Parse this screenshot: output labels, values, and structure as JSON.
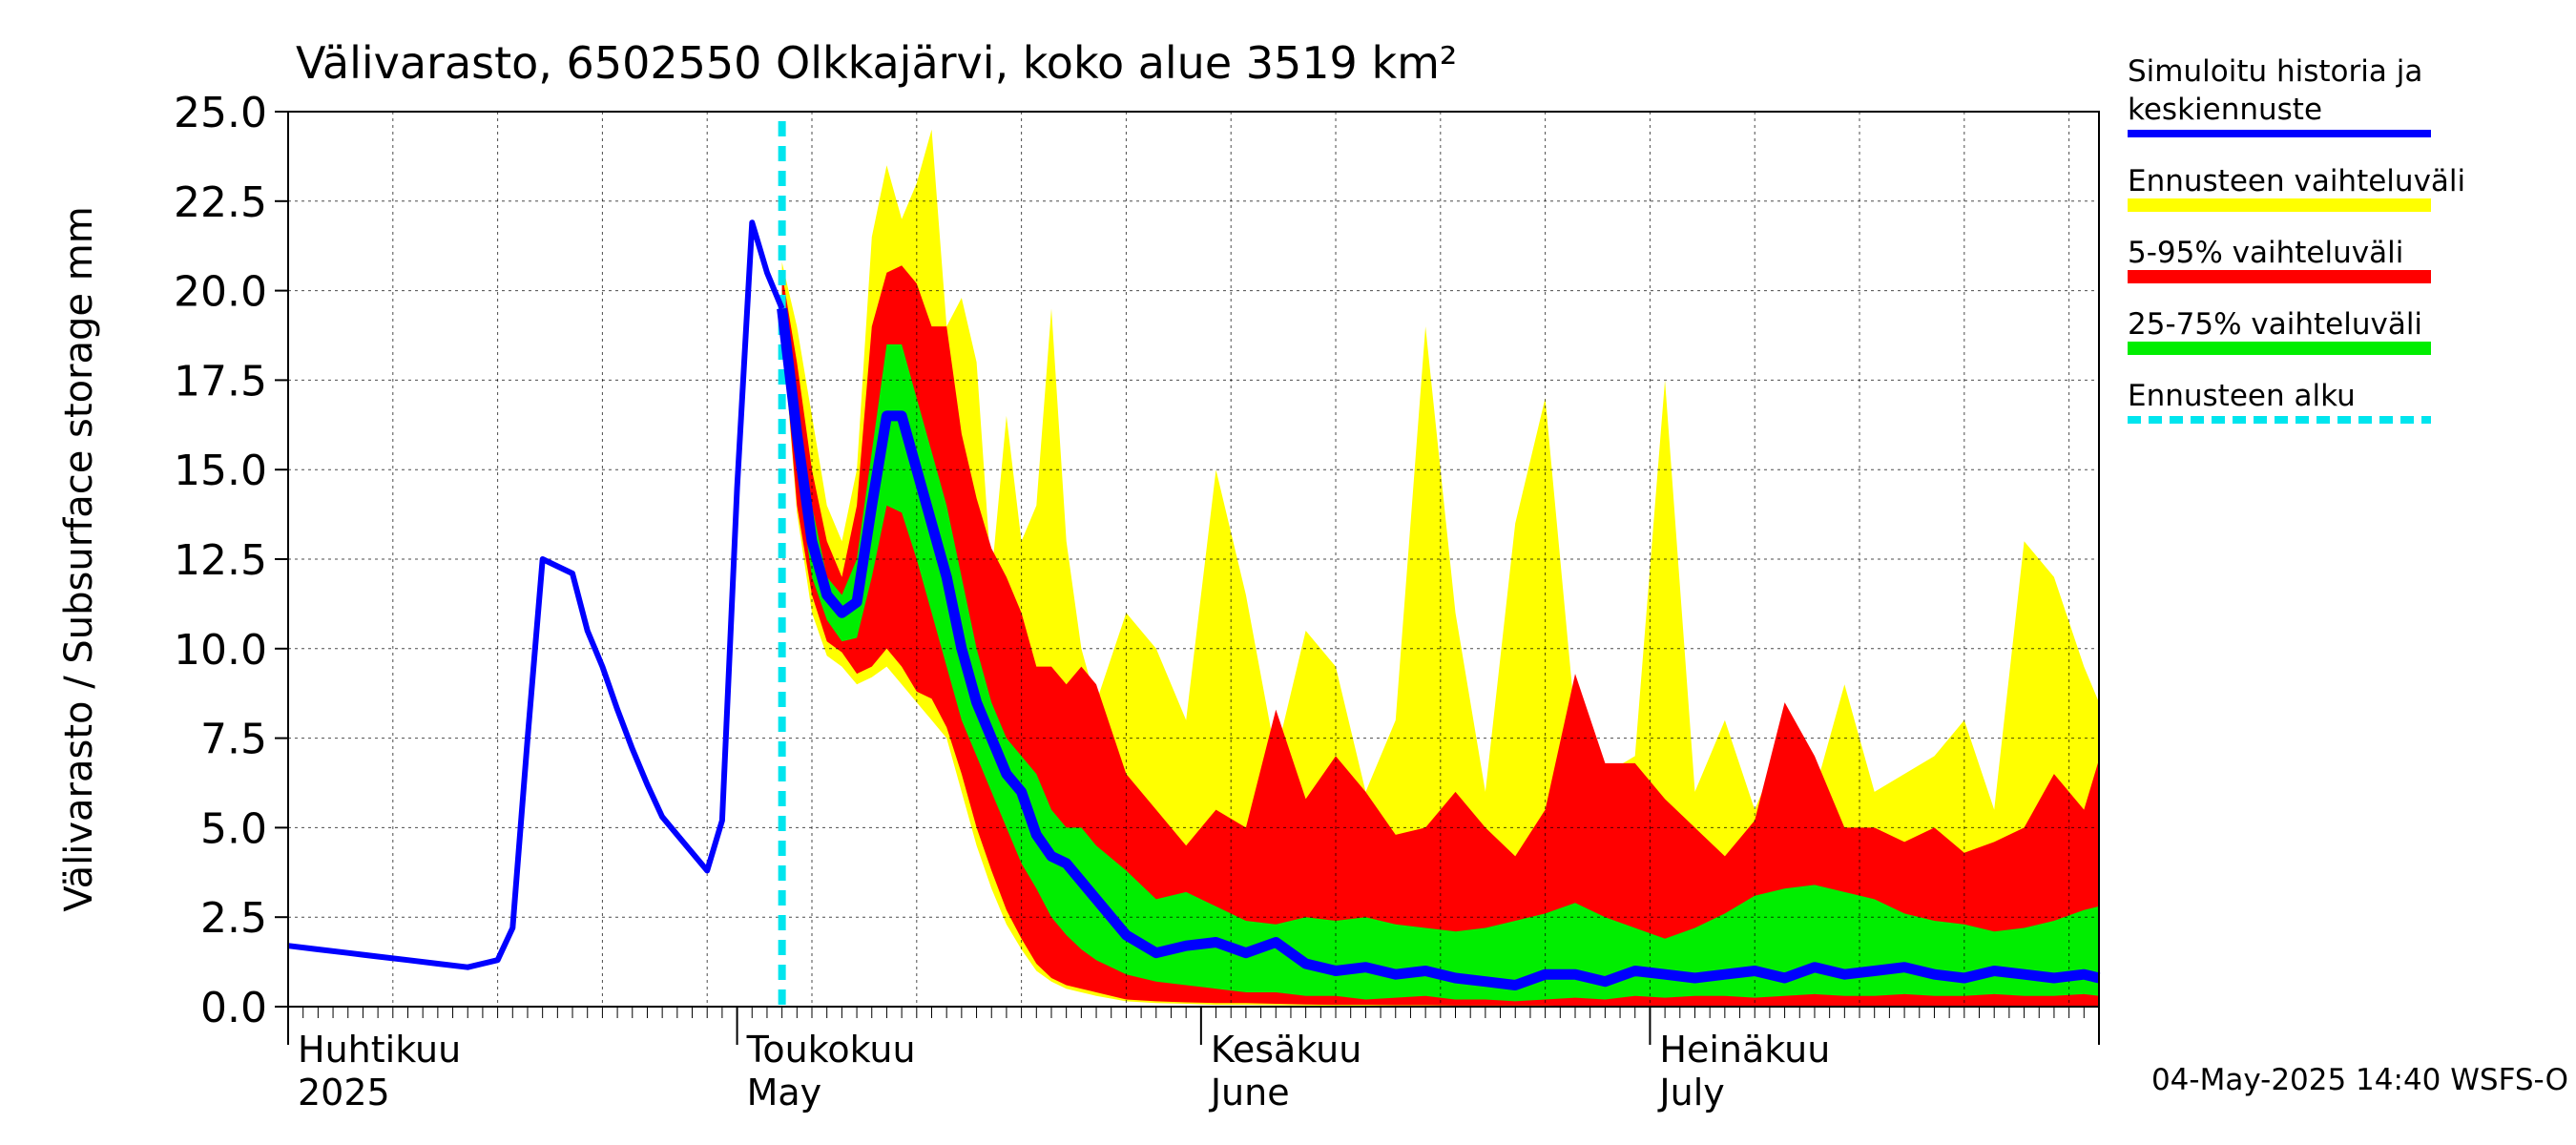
{
  "chart_data": {
    "type": "area",
    "title": "Välivarasto, 6502550 Olkkajärvi, koko alue 3519 km²",
    "ylabel": "Välivarasto / Subsurface storage  mm",
    "xlabel": "",
    "ylim": [
      0,
      25
    ],
    "y_ticks": [
      "0.0",
      "2.5",
      "5.0",
      "7.5",
      "10.0",
      "12.5",
      "15.0",
      "17.5",
      "20.0",
      "22.5",
      "25.0"
    ],
    "x_range": [
      "2025-04-01",
      "2025-07-31"
    ],
    "grid": true,
    "legend_position": "right",
    "month_labels": [
      {
        "date": "2025-04-01",
        "fi": "Huhtikuu",
        "en": "2025"
      },
      {
        "date": "2025-05-01",
        "fi": "Toukokuu",
        "en": "May"
      },
      {
        "date": "2025-06-01",
        "fi": "Kesäkuu",
        "en": "June"
      },
      {
        "date": "2025-07-01",
        "fi": "Heinäkuu",
        "en": "July"
      }
    ],
    "forecast_start": "2025-05-04",
    "legend": [
      {
        "label": "Simuloitu historia ja",
        "label2": "keskiennuste",
        "color": "#0000ff",
        "kind": "line"
      },
      {
        "label": "Ennusteen vaihteluväli",
        "color": "#ffff00",
        "kind": "band"
      },
      {
        "label": "5-95% vaihteluväli",
        "color": "#ff0000",
        "kind": "band"
      },
      {
        "label": "25-75% vaihteluväli",
        "color": "#00ee00",
        "kind": "band"
      },
      {
        "label": "Ennusteen alku",
        "color": "#00e5ee",
        "kind": "dashed"
      }
    ],
    "colors": {
      "median": "#0000ff",
      "range": "#ffff00",
      "p5_95": "#ff0000",
      "p25_75": "#00ee00",
      "forecast_start": "#00e5ee"
    },
    "history": {
      "dates": [
        "2025-04-01",
        "2025-04-03",
        "2025-04-05",
        "2025-04-07",
        "2025-04-09",
        "2025-04-11",
        "2025-04-13",
        "2025-04-15",
        "2025-04-16",
        "2025-04-17",
        "2025-04-18",
        "2025-04-19",
        "2025-04-20",
        "2025-04-21",
        "2025-04-22",
        "2025-04-23",
        "2025-04-24",
        "2025-04-25",
        "2025-04-26",
        "2025-04-27",
        "2025-04-28",
        "2025-04-29",
        "2025-04-30",
        "2025-05-01",
        "2025-05-02",
        "2025-05-03",
        "2025-05-04"
      ],
      "values": [
        1.7,
        1.6,
        1.5,
        1.4,
        1.3,
        1.2,
        1.1,
        1.3,
        2.2,
        7.5,
        12.5,
        12.3,
        12.1,
        10.5,
        9.5,
        8.3,
        7.2,
        6.2,
        5.3,
        4.8,
        4.3,
        3.8,
        5.2,
        14.5,
        21.9,
        20.5,
        19.5
      ]
    },
    "forecast": {
      "dates": [
        "2025-05-04",
        "2025-05-05",
        "2025-05-06",
        "2025-05-07",
        "2025-05-08",
        "2025-05-09",
        "2025-05-10",
        "2025-05-11",
        "2025-05-12",
        "2025-05-13",
        "2025-05-14",
        "2025-05-15",
        "2025-05-16",
        "2025-05-17",
        "2025-05-18",
        "2025-05-19",
        "2025-05-20",
        "2025-05-21",
        "2025-05-22",
        "2025-05-23",
        "2025-05-24",
        "2025-05-25",
        "2025-05-27",
        "2025-05-29",
        "2025-05-31",
        "2025-06-02",
        "2025-06-04",
        "2025-06-06",
        "2025-06-08",
        "2025-06-10",
        "2025-06-12",
        "2025-06-14",
        "2025-06-16",
        "2025-06-18",
        "2025-06-20",
        "2025-06-22",
        "2025-06-24",
        "2025-06-26",
        "2025-06-28",
        "2025-06-30",
        "2025-07-02",
        "2025-07-04",
        "2025-07-06",
        "2025-07-08",
        "2025-07-10",
        "2025-07-12",
        "2025-07-14",
        "2025-07-16",
        "2025-07-18",
        "2025-07-20",
        "2025-07-22",
        "2025-07-24",
        "2025-07-26",
        "2025-07-28",
        "2025-07-30",
        "2025-07-31"
      ],
      "median": [
        19.5,
        16.0,
        13.0,
        11.5,
        11.0,
        11.3,
        14.0,
        16.5,
        16.5,
        15.0,
        13.5,
        12.0,
        10.0,
        8.5,
        7.5,
        6.5,
        6.0,
        4.8,
        4.2,
        4.0,
        3.5,
        3.0,
        2.0,
        1.5,
        1.7,
        1.8,
        1.5,
        1.8,
        1.2,
        1.0,
        1.1,
        0.9,
        1.0,
        0.8,
        0.7,
        0.6,
        0.9,
        0.9,
        0.7,
        1.0,
        0.9,
        0.8,
        0.9,
        1.0,
        0.8,
        1.1,
        0.9,
        1.0,
        1.1,
        0.9,
        0.8,
        1.0,
        0.9,
        0.8,
        0.9,
        0.8
      ],
      "p25": [
        19.5,
        15.0,
        12.0,
        10.8,
        10.2,
        10.3,
        12.0,
        14.0,
        13.8,
        12.5,
        11.0,
        9.5,
        8.0,
        7.0,
        6.0,
        5.0,
        4.0,
        3.3,
        2.5,
        2.0,
        1.6,
        1.3,
        0.9,
        0.7,
        0.6,
        0.5,
        0.4,
        0.4,
        0.3,
        0.3,
        0.2,
        0.25,
        0.3,
        0.2,
        0.2,
        0.15,
        0.2,
        0.25,
        0.2,
        0.3,
        0.25,
        0.3,
        0.3,
        0.25,
        0.3,
        0.35,
        0.3,
        0.3,
        0.35,
        0.3,
        0.3,
        0.35,
        0.3,
        0.3,
        0.35,
        0.3
      ],
      "p75": [
        20.0,
        17.0,
        14.0,
        12.0,
        11.5,
        12.5,
        15.5,
        18.5,
        18.5,
        17.0,
        15.5,
        14.0,
        12.0,
        10.0,
        8.5,
        7.5,
        7.0,
        6.5,
        5.5,
        5.0,
        5.0,
        4.5,
        3.8,
        3.0,
        3.2,
        2.8,
        2.4,
        2.3,
        2.5,
        2.4,
        2.5,
        2.3,
        2.2,
        2.1,
        2.2,
        2.4,
        2.6,
        2.9,
        2.5,
        2.2,
        1.9,
        2.2,
        2.6,
        3.1,
        3.3,
        3.4,
        3.2,
        3.0,
        2.6,
        2.4,
        2.3,
        2.1,
        2.2,
        2.4,
        2.7,
        2.8
      ],
      "p5": [
        19.0,
        14.0,
        11.5,
        10.2,
        9.9,
        9.3,
        9.5,
        10.0,
        9.5,
        8.8,
        8.6,
        7.8,
        6.5,
        5.0,
        3.8,
        2.7,
        1.9,
        1.2,
        0.8,
        0.6,
        0.5,
        0.4,
        0.2,
        0.15,
        0.12,
        0.1,
        0.1,
        0.08,
        0.06,
        0.05,
        0.05,
        0.04,
        0.04,
        0.03,
        0.03,
        0.03,
        0.03,
        0.02,
        0.02,
        0.02,
        0.02,
        0.02,
        0.02,
        0.02,
        0.02,
        0.02,
        0.02,
        0.02,
        0.02,
        0.02,
        0.02,
        0.02,
        0.02,
        0.02,
        0.02,
        0.02
      ],
      "p95": [
        20.5,
        18.0,
        15.0,
        13.0,
        12.0,
        14.0,
        19.0,
        20.5,
        20.7,
        20.2,
        19.0,
        19.0,
        16.0,
        14.2,
        12.8,
        12.0,
        11.0,
        9.5,
        9.5,
        9.0,
        9.5,
        9.0,
        6.5,
        5.5,
        4.5,
        5.5,
        5.0,
        8.3,
        5.8,
        7.0,
        6.0,
        4.8,
        5.0,
        6.0,
        5.0,
        4.2,
        5.5,
        9.3,
        6.8,
        6.8,
        5.8,
        5.0,
        4.2,
        5.2,
        8.5,
        7.0,
        5.0,
        5.0,
        4.6,
        5.0,
        4.3,
        4.6,
        5.0,
        6.5,
        5.5,
        6.9
      ],
      "max": [
        20.8,
        19.0,
        16.5,
        14.0,
        13.0,
        15.0,
        21.5,
        23.5,
        22.0,
        23.0,
        24.5,
        19.0,
        19.8,
        18.0,
        12.0,
        16.5,
        13.0,
        14.0,
        19.5,
        13.0,
        10.0,
        8.5,
        11.0,
        10.0,
        8.0,
        15.0,
        11.5,
        7.0,
        10.5,
        9.5,
        6.0,
        8.0,
        19.0,
        11.0,
        6.0,
        13.5,
        17.0,
        8.0,
        6.5,
        7.0,
        17.5,
        6.0,
        8.0,
        5.5,
        7.5,
        6.0,
        9.0,
        6.0,
        6.5,
        7.0,
        8.0,
        5.5,
        13.0,
        12.0,
        9.5,
        8.5
      ],
      "min": [
        19.0,
        13.8,
        11.0,
        9.8,
        9.5,
        9.0,
        9.2,
        9.5,
        9.0,
        8.5,
        8.0,
        7.5,
        6.0,
        4.5,
        3.3,
        2.3,
        1.6,
        1.0,
        0.7,
        0.5,
        0.4,
        0.3,
        0.15,
        0.1,
        0.08,
        0.05,
        0.05,
        0.04,
        0.03,
        0.02,
        0.02,
        0.02,
        0.02,
        0.01,
        0.01,
        0.01,
        0.01,
        0.01,
        0.01,
        0.01,
        0.01,
        0.01,
        0.01,
        0.01,
        0.01,
        0.01,
        0.01,
        0.01,
        0.01,
        0.01,
        0.01,
        0.01,
        0.01,
        0.01,
        0.01,
        0.01
      ]
    }
  },
  "footer": {
    "timestamp": "04-May-2025 14:40 WSFS-O"
  }
}
